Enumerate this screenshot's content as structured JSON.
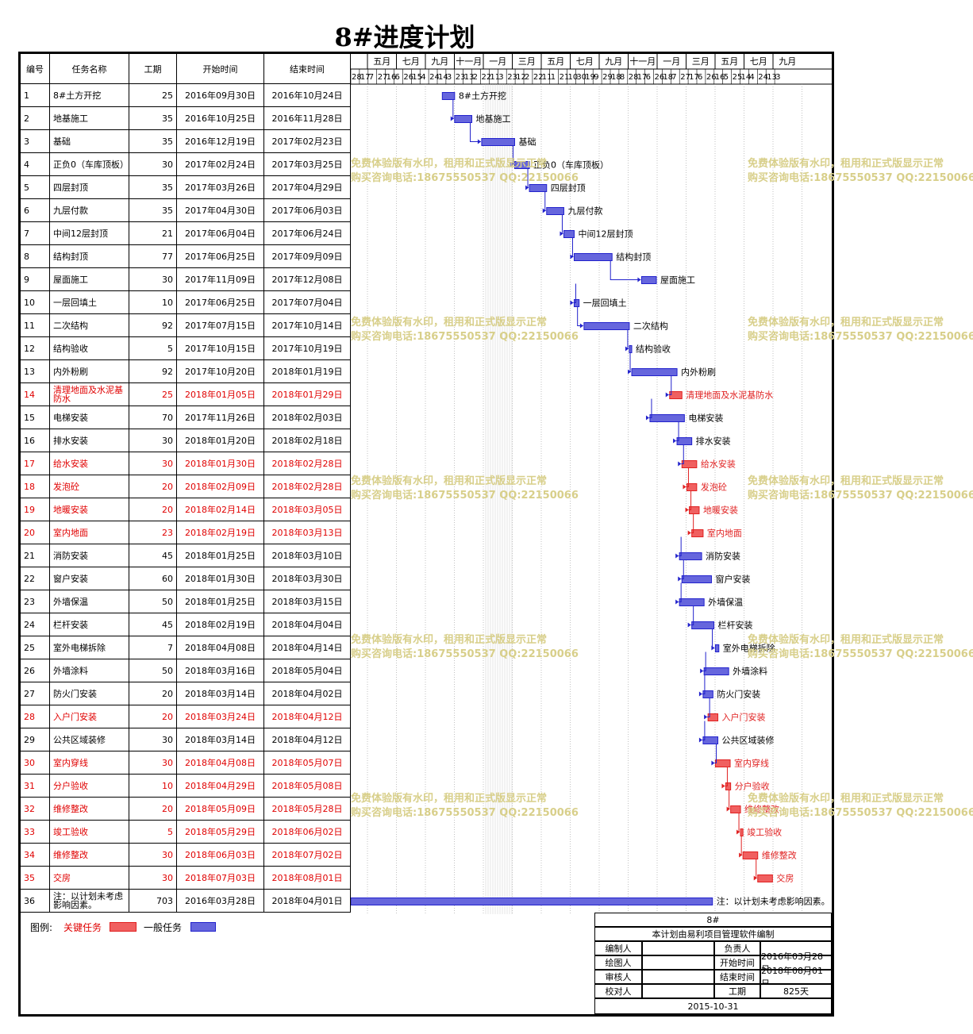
{
  "title": "8#进度计划",
  "headers": {
    "id": "编号",
    "name": "任务名称",
    "dur": "工期",
    "start": "开始时间",
    "end": "结束时间"
  },
  "months": [
    "五月",
    "七月",
    "九月",
    "十一月",
    "一月",
    "三月",
    "五月",
    "七月",
    "九月",
    "十一月",
    "一月",
    "三月",
    "五月",
    "七月",
    "九月"
  ],
  "days": [
    "28",
    "17",
    "7",
    "27",
    "16",
    "6",
    "26",
    "15",
    "4",
    "24",
    "14",
    "3",
    "23",
    "13",
    "2",
    "22",
    "11",
    "3",
    "23",
    "12",
    "2",
    "22",
    "11",
    "1",
    "21",
    "10",
    "30",
    "19",
    "9",
    "29",
    "18",
    "8",
    "28",
    "17",
    "6",
    "26",
    "18",
    "7",
    "27",
    "17",
    "6",
    "26",
    "16",
    "5",
    "25",
    "14",
    "4",
    "24",
    "13",
    "3"
  ],
  "colors": {
    "critical": "#e02020",
    "normal": "#2222cc",
    "criticalFill": "#f06060",
    "normalFill": "#6666dd"
  },
  "chart_data": {
    "type": "gantt",
    "title": "8#进度计划",
    "tasks": [
      {
        "id": "1",
        "name": "8#土方开挖",
        "dur": "25",
        "start": "2016年09月30日",
        "end": "2016年10月24日",
        "critical": false
      },
      {
        "id": "2",
        "name": "地基施工",
        "dur": "35",
        "start": "2016年10月25日",
        "end": "2016年11月28日",
        "critical": false
      },
      {
        "id": "3",
        "name": "基础",
        "dur": "35",
        "start": "2016年12月19日",
        "end": "2017年02月23日",
        "critical": false
      },
      {
        "id": "4",
        "name": "正负0（车库顶板）",
        "dur": "30",
        "start": "2017年02月24日",
        "end": "2017年03月25日",
        "critical": false
      },
      {
        "id": "5",
        "name": "四层封顶",
        "dur": "35",
        "start": "2017年03月26日",
        "end": "2017年04月29日",
        "critical": false
      },
      {
        "id": "6",
        "name": "九层付款",
        "dur": "35",
        "start": "2017年04月30日",
        "end": "2017年06月03日",
        "critical": false
      },
      {
        "id": "7",
        "name": "中间12层封顶",
        "dur": "21",
        "start": "2017年06月04日",
        "end": "2017年06月24日",
        "critical": false
      },
      {
        "id": "8",
        "name": "结构封顶",
        "dur": "77",
        "start": "2017年06月25日",
        "end": "2017年09月09日",
        "critical": false
      },
      {
        "id": "9",
        "name": "屋面施工",
        "dur": "30",
        "start": "2017年11月09日",
        "end": "2017年12月08日",
        "critical": false
      },
      {
        "id": "10",
        "name": "一层回填土",
        "dur": "10",
        "start": "2017年06月25日",
        "end": "2017年07月04日",
        "critical": false
      },
      {
        "id": "11",
        "name": "二次结构",
        "dur": "92",
        "start": "2017年07月15日",
        "end": "2017年10月14日",
        "critical": false
      },
      {
        "id": "12",
        "name": "结构验收",
        "dur": "5",
        "start": "2017年10月15日",
        "end": "2017年10月19日",
        "critical": false
      },
      {
        "id": "13",
        "name": "内外粉刷",
        "dur": "92",
        "start": "2017年10月20日",
        "end": "2018年01月19日",
        "critical": false
      },
      {
        "id": "14",
        "name": "清理地面及水泥基防水",
        "dur": "25",
        "start": "2018年01月05日",
        "end": "2018年01月29日",
        "critical": true
      },
      {
        "id": "15",
        "name": "电梯安装",
        "dur": "70",
        "start": "2017年11月26日",
        "end": "2018年02月03日",
        "critical": false
      },
      {
        "id": "16",
        "name": "排水安装",
        "dur": "30",
        "start": "2018年01月20日",
        "end": "2018年02月18日",
        "critical": false
      },
      {
        "id": "17",
        "name": "给水安装",
        "dur": "30",
        "start": "2018年01月30日",
        "end": "2018年02月28日",
        "critical": true
      },
      {
        "id": "18",
        "name": "发泡砼",
        "dur": "20",
        "start": "2018年02月09日",
        "end": "2018年02月28日",
        "critical": true
      },
      {
        "id": "19",
        "name": "地暖安装",
        "dur": "20",
        "start": "2018年02月14日",
        "end": "2018年03月05日",
        "critical": true
      },
      {
        "id": "20",
        "name": "室内地面",
        "dur": "23",
        "start": "2018年02月19日",
        "end": "2018年03月13日",
        "critical": true
      },
      {
        "id": "21",
        "name": "消防安装",
        "dur": "45",
        "start": "2018年01月25日",
        "end": "2018年03月10日",
        "critical": false
      },
      {
        "id": "22",
        "name": "窗户安装",
        "dur": "60",
        "start": "2018年01月30日",
        "end": "2018年03月30日",
        "critical": false
      },
      {
        "id": "23",
        "name": "外墙保温",
        "dur": "50",
        "start": "2018年01月25日",
        "end": "2018年03月15日",
        "critical": false
      },
      {
        "id": "24",
        "name": "栏杆安装",
        "dur": "45",
        "start": "2018年02月19日",
        "end": "2018年04月04日",
        "critical": false
      },
      {
        "id": "25",
        "name": "室外电梯拆除",
        "dur": "7",
        "start": "2018年04月08日",
        "end": "2018年04月14日",
        "critical": false
      },
      {
        "id": "26",
        "name": "外墙涂料",
        "dur": "50",
        "start": "2018年03月16日",
        "end": "2018年05月04日",
        "critical": false
      },
      {
        "id": "27",
        "name": "防火门安装",
        "dur": "20",
        "start": "2018年03月14日",
        "end": "2018年04月02日",
        "critical": false
      },
      {
        "id": "28",
        "name": "入户门安装",
        "dur": "20",
        "start": "2018年03月24日",
        "end": "2018年04月12日",
        "critical": true
      },
      {
        "id": "29",
        "name": "公共区域装修",
        "dur": "30",
        "start": "2018年03月14日",
        "end": "2018年04月12日",
        "critical": false
      },
      {
        "id": "30",
        "name": "室内穿线",
        "dur": "30",
        "start": "2018年04月08日",
        "end": "2018年05月07日",
        "critical": true
      },
      {
        "id": "31",
        "name": "分户验收",
        "dur": "10",
        "start": "2018年04月29日",
        "end": "2018年05月08日",
        "critical": true
      },
      {
        "id": "32",
        "name": "维修整改",
        "dur": "20",
        "start": "2018年05月09日",
        "end": "2018年05月28日",
        "critical": true
      },
      {
        "id": "33",
        "name": "竣工验收",
        "dur": "5",
        "start": "2018年05月29日",
        "end": "2018年06月02日",
        "critical": true
      },
      {
        "id": "34",
        "name": "维修整改",
        "dur": "30",
        "start": "2018年06月03日",
        "end": "2018年07月02日",
        "critical": true
      },
      {
        "id": "35",
        "name": "交房",
        "dur": "30",
        "start": "2018年07月03日",
        "end": "2018年08月01日",
        "critical": true
      },
      {
        "id": "36",
        "name": "注：以计划未考虑影响因素。",
        "dur": "703",
        "start": "2016年03月28日",
        "end": "2018年04月01日",
        "critical": false
      }
    ],
    "bar_labels": {
      "4": "正负0（车库顶板）",
      "36": "注：以计划未考虑影响因素。"
    }
  },
  "legend": {
    "label": "图例:",
    "critical": "关键任务",
    "normal": "一般任务"
  },
  "info": {
    "project": "8#",
    "software": "本计划由易利项目管理软件编制",
    "editor": "编制人",
    "owner": "负责人",
    "drawer": "绘图人",
    "start_label": "开始时间",
    "start_value": "2016年03月28日",
    "reviewer": "审核人",
    "end_label": "结束时间",
    "end_value": "2018年08月01日",
    "checker": "校对人",
    "dur_label": "工期",
    "dur_value": "825天",
    "date": "2015-10-31"
  },
  "watermark": "免费体验版有水印，租用和正式版显示正常\n购买咨询电话:18675550537 QQ:22150066"
}
